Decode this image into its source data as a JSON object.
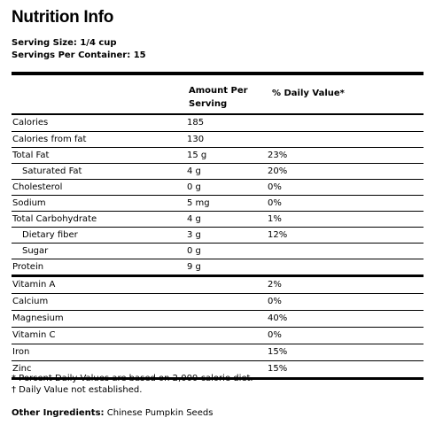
{
  "title": "Nutrition Info",
  "serving_size": "Serving Size: 1/4 cup",
  "servings_per_container": "Servings Per Container: 15",
  "table": {
    "header_amount_line1": "Amount Per",
    "header_amount_line2": "Serving",
    "header_dv": "% Daily Value*",
    "rows": [
      {
        "name": "Calories",
        "amount": "185",
        "dv": ""
      },
      {
        "name": "Calories from fat",
        "amount": "130",
        "dv": ""
      },
      {
        "name": "Total Fat",
        "amount": "15 g",
        "dv": "23%"
      },
      {
        "name": "Saturated Fat",
        "amount": "4 g",
        "dv": "20%"
      },
      {
        "name": "Cholesterol",
        "amount": "0 g",
        "dv": "0%"
      },
      {
        "name": "Sodium",
        "amount": "5 mg",
        "dv": "0%"
      },
      {
        "name": "Total Carbohydrate",
        "amount": "4 g",
        "dv": "1%"
      },
      {
        "name": "Dietary fiber",
        "amount": "3 g",
        "dv": "12%"
      },
      {
        "name": "Sugar",
        "amount": "0 g",
        "dv": ""
      },
      {
        "name": "Protein",
        "amount": "9 g",
        "dv": ""
      }
    ],
    "vitamins": [
      {
        "name": "Vitamin A",
        "dv": "2%"
      },
      {
        "name": "Calcium",
        "dv": "0%"
      },
      {
        "name": "Magnesium",
        "dv": "40%"
      },
      {
        "name": "Vitamin C",
        "dv": "0%"
      },
      {
        "name": "Iron",
        "dv": "15%"
      },
      {
        "name": "Zinc",
        "dv": "15%"
      }
    ]
  },
  "footnotes": {
    "percent_note": "* Percent Daily Values are based on 2,000 calorie diet.",
    "dagger_note": "† Daily Value not established."
  },
  "other_ingredients": {
    "label": "Other Ingredients:",
    "value": " Chinese Pumpkin Seeds"
  }
}
